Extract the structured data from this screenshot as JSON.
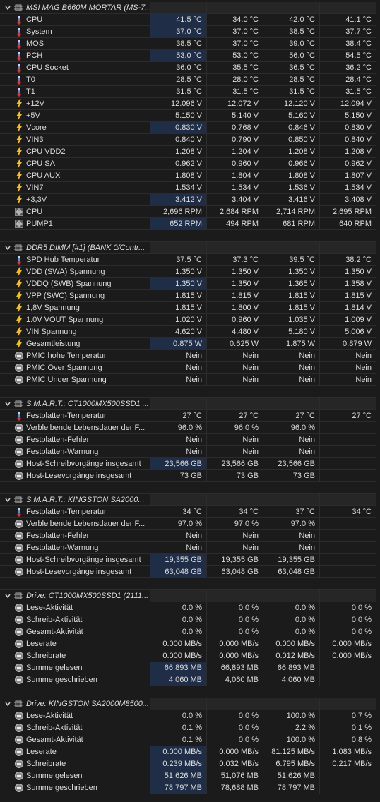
{
  "groups": [
    {
      "title": "MSI MAG B660M MORTAR (MS-7...",
      "rows": [
        {
          "label": "CPU",
          "icon": "temp",
          "hl": true,
          "values": [
            "41.5 °C",
            "34.0 °C",
            "42.0 °C",
            "41.1 °C"
          ]
        },
        {
          "label": "System",
          "icon": "temp",
          "hl": true,
          "values": [
            "37.0 °C",
            "37.0 °C",
            "38.5 °C",
            "37.7 °C"
          ]
        },
        {
          "label": "MOS",
          "icon": "temp",
          "values": [
            "38.5 °C",
            "37.0 °C",
            "39.0 °C",
            "38.4 °C"
          ]
        },
        {
          "label": "PCH",
          "icon": "temp",
          "hl": true,
          "values": [
            "53.0 °C",
            "53.0 °C",
            "56.0 °C",
            "54.5 °C"
          ]
        },
        {
          "label": "CPU Socket",
          "icon": "temp",
          "values": [
            "36.0 °C",
            "35.5 °C",
            "36.5 °C",
            "36.2 °C"
          ]
        },
        {
          "label": "T0",
          "icon": "temp",
          "values": [
            "28.5 °C",
            "28.0 °C",
            "28.5 °C",
            "28.4 °C"
          ]
        },
        {
          "label": "T1",
          "icon": "temp",
          "values": [
            "31.5 °C",
            "31.5 °C",
            "31.5 °C",
            "31.5 °C"
          ]
        },
        {
          "label": "+12V",
          "icon": "volt",
          "values": [
            "12.096 V",
            "12.072 V",
            "12.120 V",
            "12.094 V"
          ]
        },
        {
          "label": "+5V",
          "icon": "volt",
          "values": [
            "5.150 V",
            "5.140 V",
            "5.160 V",
            "5.150 V"
          ]
        },
        {
          "label": "Vcore",
          "icon": "volt",
          "hl": true,
          "values": [
            "0.830 V",
            "0.768 V",
            "0.846 V",
            "0.830 V"
          ]
        },
        {
          "label": "VIN3",
          "icon": "volt",
          "values": [
            "0.840 V",
            "0.790 V",
            "0.850 V",
            "0.840 V"
          ]
        },
        {
          "label": "CPU VDD2",
          "icon": "volt",
          "values": [
            "1.208 V",
            "1.204 V",
            "1.208 V",
            "1.208 V"
          ]
        },
        {
          "label": "CPU SA",
          "icon": "volt",
          "values": [
            "0.962 V",
            "0.960 V",
            "0.966 V",
            "0.962 V"
          ]
        },
        {
          "label": "CPU AUX",
          "icon": "volt",
          "values": [
            "1.808 V",
            "1.804 V",
            "1.808 V",
            "1.807 V"
          ]
        },
        {
          "label": "VIN7",
          "icon": "volt",
          "values": [
            "1.534 V",
            "1.534 V",
            "1.536 V",
            "1.534 V"
          ]
        },
        {
          "label": "+3,3V",
          "icon": "volt",
          "hl": true,
          "values": [
            "3.412 V",
            "3.404 V",
            "3.416 V",
            "3.408 V"
          ]
        },
        {
          "label": "CPU",
          "icon": "fan",
          "values": [
            "2,696 RPM",
            "2,684 RPM",
            "2,714 RPM",
            "2,695 RPM"
          ]
        },
        {
          "label": "PUMP1",
          "icon": "fan",
          "hl": true,
          "values": [
            "652 RPM",
            "494 RPM",
            "681 RPM",
            "640 RPM"
          ]
        }
      ]
    },
    {
      "title": "DDR5 DIMM [#1] (BANK 0/Contr...",
      "rows": [
        {
          "label": "SPD Hub Temperatur",
          "icon": "temp",
          "values": [
            "37.5 °C",
            "37.3 °C",
            "39.5 °C",
            "38.2 °C"
          ]
        },
        {
          "label": "VDD (SWA) Spannung",
          "icon": "volt",
          "values": [
            "1.350 V",
            "1.350 V",
            "1.350 V",
            "1.350 V"
          ]
        },
        {
          "label": "VDDQ (SWB) Spannung",
          "icon": "volt",
          "hl": true,
          "values": [
            "1.350 V",
            "1.350 V",
            "1.365 V",
            "1.358 V"
          ]
        },
        {
          "label": "VPP (SWC) Spannung",
          "icon": "volt",
          "values": [
            "1.815 V",
            "1.815 V",
            "1.815 V",
            "1.815 V"
          ]
        },
        {
          "label": "1,8V Spannung",
          "icon": "volt",
          "values": [
            "1.815 V",
            "1.800 V",
            "1.815 V",
            "1.814 V"
          ]
        },
        {
          "label": "1.0V VOUT Spannung",
          "icon": "volt",
          "values": [
            "1.020 V",
            "0.960 V",
            "1.035 V",
            "1.009 V"
          ]
        },
        {
          "label": "VIN Spannung",
          "icon": "volt",
          "values": [
            "4.620 V",
            "4.480 V",
            "5.180 V",
            "5.006 V"
          ]
        },
        {
          "label": "Gesamtleistung",
          "icon": "volt",
          "hl": true,
          "values": [
            "0.875 W",
            "0.625 W",
            "1.875 W",
            "0.879 W"
          ]
        },
        {
          "label": "PMIC hohe Temperatur",
          "icon": "misc",
          "values": [
            "Nein",
            "Nein",
            "Nein",
            "Nein"
          ]
        },
        {
          "label": "PMIC Over Spannung",
          "icon": "misc",
          "values": [
            "Nein",
            "Nein",
            "Nein",
            "Nein"
          ]
        },
        {
          "label": "PMIC Under Spannung",
          "icon": "misc",
          "values": [
            "Nein",
            "Nein",
            "Nein",
            "Nein"
          ]
        }
      ]
    },
    {
      "title": "S.M.A.R.T.: CT1000MX500SSD1 ...",
      "rows": [
        {
          "label": "Festplatten-Temperatur",
          "icon": "temp",
          "values": [
            "27 °C",
            "27 °C",
            "27 °C",
            "27 °C"
          ]
        },
        {
          "label": "Verbleibende Lebensdauer der F...",
          "icon": "misc",
          "values": [
            "96.0 %",
            "96.0 %",
            "96.0 %",
            null
          ]
        },
        {
          "label": "Festplatten-Fehler",
          "icon": "misc",
          "values": [
            "Nein",
            "Nein",
            "Nein",
            null
          ]
        },
        {
          "label": "Festplatten-Warnung",
          "icon": "misc",
          "values": [
            "Nein",
            "Nein",
            "Nein",
            null
          ]
        },
        {
          "label": "Host-Schreibvorgänge insgesamt",
          "icon": "misc",
          "hl": true,
          "values": [
            "23,566 GB",
            "23,566 GB",
            "23,566 GB",
            null
          ]
        },
        {
          "label": "Host-Lesevorgänge insgesamt",
          "icon": "misc",
          "values": [
            "73 GB",
            "73 GB",
            "73 GB",
            null
          ]
        }
      ]
    },
    {
      "title": "S.M.A.R.T.: KINGSTON SA2000...",
      "rows": [
        {
          "label": "Festplatten-Temperatur",
          "icon": "temp",
          "values": [
            "34 °C",
            "34 °C",
            "37 °C",
            "34 °C"
          ]
        },
        {
          "label": "Verbleibende Lebensdauer der F...",
          "icon": "misc",
          "values": [
            "97.0 %",
            "97.0 %",
            "97.0 %",
            null
          ]
        },
        {
          "label": "Festplatten-Fehler",
          "icon": "misc",
          "values": [
            "Nein",
            "Nein",
            "Nein",
            null
          ]
        },
        {
          "label": "Festplatten-Warnung",
          "icon": "misc",
          "values": [
            "Nein",
            "Nein",
            "Nein",
            null
          ]
        },
        {
          "label": "Host-Schreibvorgänge insgesamt",
          "icon": "misc",
          "hl": true,
          "values": [
            "19,355 GB",
            "19,355 GB",
            "19,355 GB",
            null
          ]
        },
        {
          "label": "Host-Lesevorgänge insgesamt",
          "icon": "misc",
          "hl": true,
          "values": [
            "63,048 GB",
            "63,048 GB",
            "63,048 GB",
            null
          ]
        }
      ]
    },
    {
      "title": "Drive: CT1000MX500SSD1 (2111...",
      "rows": [
        {
          "label": "Lese-Aktivität",
          "icon": "misc",
          "values": [
            "0.0 %",
            "0.0 %",
            "0.0 %",
            "0.0 %"
          ]
        },
        {
          "label": "Schreib-Aktivität",
          "icon": "misc",
          "values": [
            "0.0 %",
            "0.0 %",
            "0.0 %",
            "0.0 %"
          ]
        },
        {
          "label": "Gesamt-Aktivität",
          "icon": "misc",
          "values": [
            "0.0 %",
            "0.0 %",
            "0.0 %",
            "0.0 %"
          ]
        },
        {
          "label": "Leserate",
          "icon": "misc",
          "values": [
            "0.000 MB/s",
            "0.000 MB/s",
            "0.000 MB/s",
            "0.000 MB/s"
          ]
        },
        {
          "label": "Schreibrate",
          "icon": "misc",
          "values": [
            "0.000 MB/s",
            "0.000 MB/s",
            "0.012 MB/s",
            "0.000 MB/s"
          ]
        },
        {
          "label": "Summe gelesen",
          "icon": "misc",
          "hl": true,
          "values": [
            "66,893 MB",
            "66,893 MB",
            "66,893 MB",
            null
          ]
        },
        {
          "label": "Summe geschrieben",
          "icon": "misc",
          "hl": true,
          "values": [
            "4,060 MB",
            "4,060 MB",
            "4,060 MB",
            null
          ]
        }
      ]
    },
    {
      "title": "Drive: KINGSTON SA2000M8500...",
      "rows": [
        {
          "label": "Lese-Aktivität",
          "icon": "misc",
          "values": [
            "0.0 %",
            "0.0 %",
            "100.0 %",
            "0.7 %"
          ]
        },
        {
          "label": "Schreib-Aktivität",
          "icon": "misc",
          "values": [
            "0.1 %",
            "0.0 %",
            "2.2 %",
            "0.1 %"
          ]
        },
        {
          "label": "Gesamt-Aktivität",
          "icon": "misc",
          "values": [
            "0.1 %",
            "0.0 %",
            "100.0 %",
            "0.8 %"
          ]
        },
        {
          "label": "Leserate",
          "icon": "misc",
          "hl": true,
          "values": [
            "0.000 MB/s",
            "0.000 MB/s",
            "81.125 MB/s",
            "1.083 MB/s"
          ]
        },
        {
          "label": "Schreibrate",
          "icon": "misc",
          "hl": true,
          "values": [
            "0.239 MB/s",
            "0.032 MB/s",
            "6.795 MB/s",
            "0.217 MB/s"
          ]
        },
        {
          "label": "Summe gelesen",
          "icon": "misc",
          "hl": true,
          "values": [
            "51,626 MB",
            "51,076 MB",
            "51,626 MB",
            null
          ]
        },
        {
          "label": "Summe geschrieben",
          "icon": "misc",
          "hl": true,
          "values": [
            "78,797 MB",
            "78,688 MB",
            "78,797 MB",
            null
          ]
        }
      ]
    }
  ]
}
